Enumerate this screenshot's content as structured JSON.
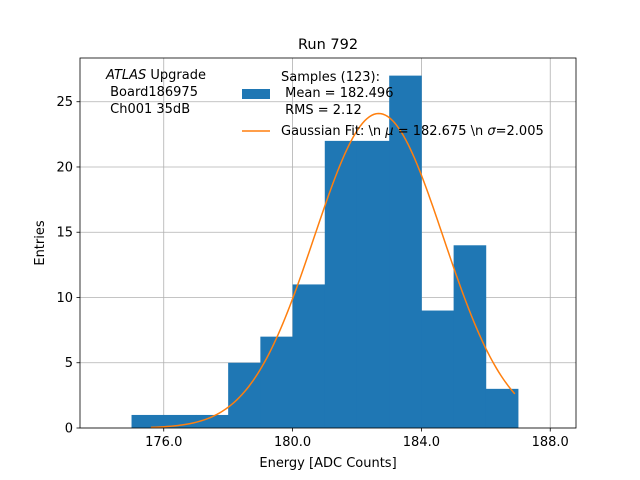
{
  "chart_data": {
    "type": "bar",
    "title": "Run 792",
    "xlabel": "Energy [ADC Counts]",
    "ylabel": "Entries",
    "xlim": [
      173.4,
      188.8
    ],
    "ylim": [
      0,
      28.35
    ],
    "grid": true,
    "x_ticks": [
      {
        "value": 176,
        "label": "176.0"
      },
      {
        "value": 180,
        "label": "180.0"
      },
      {
        "value": 184,
        "label": "184.0"
      },
      {
        "value": 188,
        "label": "188.0"
      }
    ],
    "y_ticks": [
      {
        "value": 0,
        "label": "0"
      },
      {
        "value": 5,
        "label": "5"
      },
      {
        "value": 10,
        "label": "10"
      },
      {
        "value": 15,
        "label": "15"
      },
      {
        "value": 20,
        "label": "20"
      },
      {
        "value": 25,
        "label": "25"
      }
    ],
    "bin_edges": [
      175,
      176,
      177,
      178,
      179,
      180,
      181,
      182,
      183,
      184,
      185,
      186,
      187
    ],
    "counts": [
      1,
      1,
      1,
      5,
      7,
      11,
      22,
      22,
      27,
      9,
      14,
      3
    ],
    "hist_color": "#1f77b4",
    "fit": {
      "mu": 182.675,
      "sigma": 2.005,
      "amplitude": 24.1,
      "x_range": [
        175.6,
        186.9
      ],
      "color": "#ff7f0e"
    },
    "annotation": {
      "italic": "ATLAS",
      "line1_rest": " Upgrade",
      "line2": " Board186975",
      "line3": " Ch001 35dB"
    },
    "legend": {
      "position": "top-center",
      "hist_lines": [
        "Samples (123):",
        " Mean = 182.496",
        " RMS = 2.12"
      ],
      "fit_label": {
        "prefix": "Gaussian Fit: \\n ",
        "mu_symbol": "μ",
        "mid": " = 182.675 \\n ",
        "sigma_symbol": "σ",
        "suffix": "=2.005"
      }
    }
  }
}
